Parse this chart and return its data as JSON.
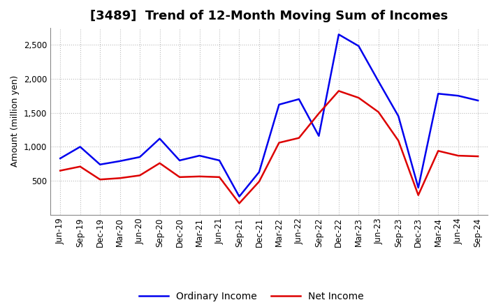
{
  "title": "[3489]  Trend of 12-Month Moving Sum of Incomes",
  "ylabel": "Amount (million yen)",
  "labels": [
    "Jun-19",
    "Sep-19",
    "Dec-19",
    "Mar-20",
    "Jun-20",
    "Sep-20",
    "Dec-20",
    "Mar-21",
    "Jun-21",
    "Sep-21",
    "Dec-21",
    "Mar-22",
    "Jun-22",
    "Sep-22",
    "Dec-22",
    "Mar-23",
    "Jun-23",
    "Sep-23",
    "Dec-23",
    "Mar-24",
    "Jun-24",
    "Sep-24"
  ],
  "ordinary_income": [
    830,
    1000,
    740,
    790,
    850,
    1120,
    800,
    870,
    800,
    270,
    630,
    1620,
    1700,
    1160,
    2650,
    2480,
    1960,
    1450,
    400,
    1780,
    1750,
    1680
  ],
  "net_income": [
    650,
    710,
    520,
    540,
    580,
    760,
    555,
    565,
    555,
    170,
    490,
    1060,
    1130,
    1490,
    1820,
    1720,
    1510,
    1090,
    290,
    940,
    870,
    860
  ],
  "ordinary_income_color": "#0000ee",
  "net_income_color": "#dd0000",
  "background_color": "#ffffff",
  "grid_color": "#bbbbbb",
  "ylim": [
    0,
    2750
  ],
  "yticks": [
    500,
    1000,
    1500,
    2000,
    2500
  ],
  "legend_labels": [
    "Ordinary Income",
    "Net Income"
  ],
  "line_width": 1.8,
  "title_fontsize": 13,
  "axis_fontsize": 9,
  "tick_fontsize": 8.5
}
